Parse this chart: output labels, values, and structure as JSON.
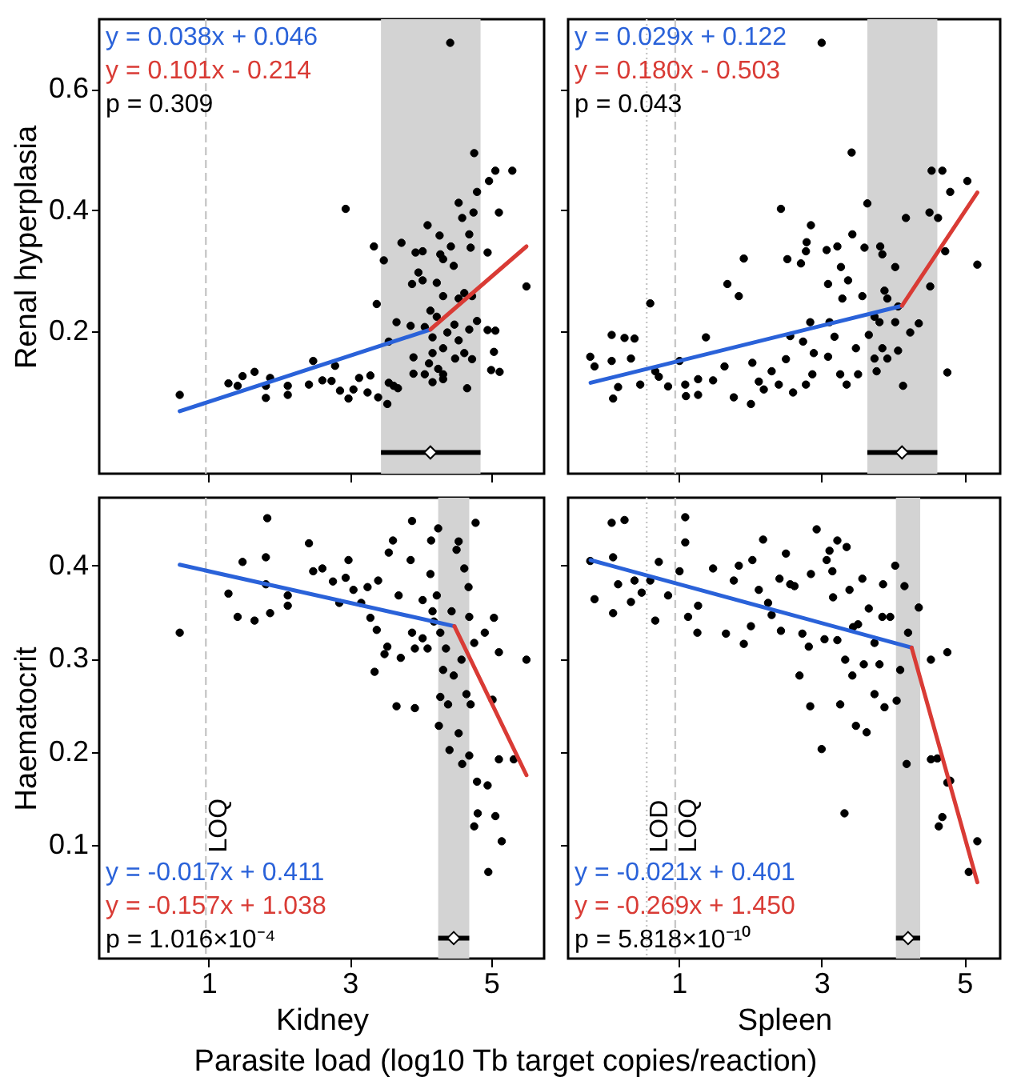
{
  "chart_data": [
    {
      "type": "scatter",
      "ylabel": "Renal hyperplasia",
      "xlim": [
        -0.55,
        5.75
      ],
      "ylim": [
        -0.035,
        0.715
      ],
      "xticks": [
        1,
        3,
        5
      ],
      "yticks": [
        0.2,
        0.4,
        0.6
      ],
      "tick_labels": "y",
      "legend": "top left",
      "marker": "circle",
      "bands": [
        {
          "axis": "x",
          "from": 3.44,
          "to": 4.85,
          "color": "#d3d3d3"
        }
      ],
      "ref_lines": [
        {
          "axis": "x",
          "value": 0.96,
          "color": "#c8c8c8",
          "line_style": "dashed"
        }
      ],
      "annotations": [
        "p = 0.309"
      ],
      "series": [
        {
          "type": "scatter",
          "color": "#000000",
          "x": [
            0.59,
            1.28,
            1.41,
            1.48,
            1.65,
            1.81,
            1.87,
            1.81,
            2.12,
            2.12,
            2.42,
            2.48,
            2.61,
            2.79,
            2.74,
            2.86,
            2.98,
            3.05,
            3.13,
            3.29,
            3.25,
            3.4,
            3.53,
            3.55,
            3.62,
            3.68,
            2.94,
            3.34,
            3.48,
            3.73,
            3.38,
            3.66,
            3.55,
            3.86,
            3.9,
            3.9,
            4.1,
            3.93,
            4.03,
            4.27,
            4.28,
            4.43,
            3.97,
            3.88,
            4.03,
            4.23,
            4.32,
            4.47,
            4.42,
            4.76,
            5.06,
            5.3,
            4.97,
            4.8,
            4.54,
            4.59,
            4.75,
            5.11,
            4.69,
            4.71,
            4.95,
            5.5,
            4.95,
            5.06,
            5.04,
            5.0,
            5.12,
            4.8,
            4.62,
            4.73,
            4.54,
            4.32,
            4.23,
            4.14,
            4.06,
            4.17,
            4.38,
            4.54,
            4.69,
            4.62,
            4.73,
            4.49,
            4.32,
            4.17,
            4.12,
            4.25,
            4.06,
            4.32,
            4.17,
            4.66,
            4.32,
            4.48
          ],
          "values": [
            0.095,
            0.114,
            0.11,
            0.126,
            0.133,
            0.11,
            0.123,
            0.09,
            0.11,
            0.095,
            0.112,
            0.151,
            0.119,
            0.143,
            0.118,
            0.102,
            0.089,
            0.104,
            0.123,
            0.127,
            0.099,
            0.091,
            0.08,
            0.115,
            0.11,
            0.106,
            0.402,
            0.34,
            0.317,
            0.346,
            0.245,
            0.215,
            0.183,
            0.209,
            0.157,
            0.13,
            0.375,
            0.33,
            0.332,
            0.358,
            0.327,
            0.34,
            0.297,
            0.278,
            0.284,
            0.28,
            0.319,
            0.308,
            0.676,
            0.494,
            0.465,
            0.465,
            0.448,
            0.43,
            0.412,
            0.387,
            0.396,
            0.396,
            0.36,
            0.338,
            0.33,
            0.274,
            0.202,
            0.201,
            0.166,
            0.136,
            0.133,
            0.217,
            0.263,
            0.258,
            0.254,
            0.258,
            0.224,
            0.234,
            0.207,
            0.19,
            0.198,
            0.185,
            0.203,
            0.164,
            0.154,
            0.155,
            0.172,
            0.164,
            0.147,
            0.138,
            0.129,
            0.129,
            0.116,
            0.106,
            0.121,
            0.211
          ]
        },
        {
          "type": "line",
          "marker": "none",
          "name": "y = 0.038x + 0.046",
          "color": "#2a62d9",
          "x": [
            0.59,
            4.14
          ],
          "values": [
            0.068,
            0.203
          ]
        },
        {
          "type": "line",
          "marker": "none",
          "name": "y = 0.101x - 0.214",
          "color": "#d93b35",
          "x": [
            4.14,
            5.5
          ],
          "values": [
            0.203,
            0.34
          ]
        },
        {
          "type": "scatter",
          "marker": "diamond",
          "color": "#ffffff",
          "x": [
            4.14
          ],
          "values": [
            0
          ],
          "xerrors": [
            [
              3.44,
              4.85
            ]
          ]
        }
      ]
    },
    {
      "type": "scatter",
      "xlim": [
        -0.55,
        5.5
      ],
      "ylim": [
        -0.035,
        0.715
      ],
      "xticks": [
        1,
        3,
        5
      ],
      "yticks": [
        0.2,
        0.4,
        0.6
      ],
      "tick_labels": false,
      "legend": "top left",
      "marker": "circle",
      "bands": [
        {
          "axis": "x",
          "from": 3.64,
          "to": 4.62,
          "color": "#d3d3d3"
        }
      ],
      "ref_lines": [
        {
          "axis": "x",
          "value": 0.55,
          "color": "#c8c8c8",
          "line_style": "dotted"
        },
        {
          "axis": "x",
          "value": 0.95,
          "color": "#c8c8c8",
          "line_style": "dashed"
        }
      ],
      "annotations": [
        "p = 0.043"
      ],
      "series": [
        {
          "type": "scatter",
          "color": "#000000",
          "x": [
            -0.24,
            -0.18,
            0.06,
            0.06,
            0.08,
            0.15,
            0.24,
            0.38,
            0.33,
            0.46,
            0.6,
            0.67,
            0.72,
            0.85,
            1.01,
            1.09,
            1.1,
            1.27,
            1.27,
            1.38,
            1.48,
            1.64,
            1.68,
            1.77,
            1.84,
            1.91,
            2.03,
            2.01,
            2.12,
            2.19,
            2.3,
            2.4,
            2.43,
            2.52,
            2.5,
            2.56,
            2.6,
            2.71,
            2.78,
            2.79,
            2.85,
            2.84,
            2.74,
            2.89,
            2.87,
            2.78,
            3.0,
            3.07,
            3.09,
            3.11,
            3.09,
            3.18,
            3.22,
            3.27,
            3.29,
            3.26,
            3.35,
            3.37,
            3.42,
            3.43,
            3.48,
            3.51,
            3.57,
            3.6,
            3.64,
            3.66,
            3.74,
            3.82,
            3.85,
            3.88,
            3.92,
            4.03,
            4.07,
            4.03,
            4.07,
            4.14,
            4.18,
            4.24,
            4.36,
            4.52,
            4.54,
            4.69,
            4.8,
            4.51,
            4.63,
            4.73,
            4.76,
            5.04,
            5.18,
            3.81,
            3.74,
            3.92,
            3.77,
            3.85
          ],
          "values": [
            0.158,
            0.142,
            0.151,
            0.194,
            0.089,
            0.108,
            0.189,
            0.188,
            0.155,
            0.112,
            0.246,
            0.134,
            0.125,
            0.109,
            0.151,
            0.112,
            0.093,
            0.121,
            0.095,
            0.19,
            0.119,
            0.142,
            0.278,
            0.091,
            0.258,
            0.32,
            0.148,
            0.08,
            0.117,
            0.104,
            0.134,
            0.112,
            0.402,
            0.319,
            0.154,
            0.192,
            0.099,
            0.312,
            0.332,
            0.347,
            0.375,
            0.215,
            0.183,
            0.164,
            0.129,
            0.112,
            0.676,
            0.334,
            0.278,
            0.215,
            0.158,
            0.191,
            0.34,
            0.306,
            0.254,
            0.129,
            0.112,
            0.284,
            0.495,
            0.36,
            0.172,
            0.129,
            0.258,
            0.338,
            0.411,
            0.194,
            0.155,
            0.34,
            0.327,
            0.267,
            0.155,
            0.306,
            0.241,
            0.215,
            0.168,
            0.11,
            0.387,
            0.198,
            0.213,
            0.274,
            0.465,
            0.465,
            0.43,
            0.396,
            0.387,
            0.332,
            0.132,
            0.448,
            0.31,
            0.215,
            0.224,
            0.254,
            0.134,
            0.172
          ]
        },
        {
          "type": "line",
          "marker": "none",
          "name": "y = 0.029x + 0.122",
          "color": "#2a62d9",
          "x": [
            -0.235,
            4.125
          ],
          "values": [
            0.115,
            0.242
          ]
        },
        {
          "type": "line",
          "marker": "none",
          "name": "y = 0.180x - 0.503",
          "color": "#d93b35",
          "x": [
            4.125,
            5.18
          ],
          "values": [
            0.242,
            0.429
          ]
        },
        {
          "type": "scatter",
          "marker": "diamond",
          "color": "#ffffff",
          "x": [
            4.125
          ],
          "values": [
            0
          ],
          "xerrors": [
            [
              3.64,
              4.62
            ]
          ]
        }
      ]
    },
    {
      "type": "scatter",
      "xlabel": "Kidney",
      "ylabel": "Haematocrit",
      "xlim": [
        -0.55,
        5.75
      ],
      "ylim": [
        -0.022,
        0.473
      ],
      "xticks": [
        1,
        3,
        5
      ],
      "yticks": [
        0.1,
        0.2,
        0.3,
        0.4
      ],
      "legend": "bottom left",
      "marker": "circle",
      "bands": [
        {
          "axis": "x",
          "from": 4.25,
          "to": 4.69,
          "color": "#d3d3d3"
        }
      ],
      "ref_lines": [
        {
          "axis": "x",
          "value": 0.96,
          "label": "LOQ",
          "color": "#c8c8c8",
          "line_style": "dashed"
        }
      ],
      "annotations": [
        "p = 1.016×10⁻⁴"
      ],
      "series": [
        {
          "type": "scatter",
          "color": "#000000",
          "x": [
            0.59,
            1.28,
            1.41,
            1.48,
            1.65,
            1.81,
            1.81,
            1.83,
            1.87,
            2.12,
            2.12,
            2.42,
            2.48,
            2.61,
            2.76,
            2.85,
            2.94,
            2.98,
            3.05,
            3.16,
            3.25,
            3.29,
            3.35,
            3.38,
            3.4,
            3.49,
            3.53,
            3.55,
            3.61,
            3.66,
            3.72,
            3.69,
            3.86,
            3.88,
            3.88,
            3.92,
            3.92,
            4.03,
            4.03,
            4.15,
            4.14,
            4.25,
            4.26,
            4.28,
            4.32,
            4.17,
            4.23,
            4.28,
            4.36,
            4.39,
            4.41,
            4.47,
            4.51,
            4.54,
            4.54,
            4.59,
            4.62,
            4.68,
            4.69,
            4.71,
            4.65,
            4.58,
            4.78,
            4.76,
            4.8,
            4.81,
            4.76,
            4.95,
            4.96,
            4.91,
            5.02,
            5.04,
            5.06,
            5.11,
            5.11,
            5.15,
            5.32,
            5.5,
            4.1,
            4.19,
            4.69,
            4.44
          ],
          "values": [
            0.328,
            0.37,
            0.345,
            0.404,
            0.341,
            0.409,
            0.38,
            0.451,
            0.349,
            0.357,
            0.368,
            0.424,
            0.394,
            0.397,
            0.383,
            0.36,
            0.387,
            0.406,
            0.374,
            0.36,
            0.377,
            0.344,
            0.286,
            0.331,
            0.384,
            0.305,
            0.313,
            0.414,
            0.427,
            0.249,
            0.301,
            0.368,
            0.406,
            0.448,
            0.328,
            0.247,
            0.311,
            0.363,
            0.322,
            0.427,
            0.391,
            0.44,
            0.228,
            0.259,
            0.288,
            0.351,
            0.368,
            0.328,
            0.311,
            0.251,
            0.202,
            0.282,
            0.417,
            0.426,
            0.22,
            0.187,
            0.397,
            0.377,
            0.196,
            0.251,
            0.262,
            0.299,
            0.446,
            0.317,
            0.168,
            0.134,
            0.12,
            0.164,
            0.071,
            0.328,
            0.256,
            0.344,
            0.131,
            0.307,
            0.192,
            0.104,
            0.192,
            0.299,
            0.311,
            0.34,
            0.345,
            0.351
          ]
        },
        {
          "type": "line",
          "marker": "none",
          "name": "y = -0.017x + 0.411",
          "color": "#2a62d9",
          "x": [
            0.59,
            4.48
          ],
          "values": [
            0.401,
            0.335
          ]
        },
        {
          "type": "line",
          "marker": "none",
          "name": "y = -0.157x + 1.038",
          "color": "#d93b35",
          "x": [
            4.48,
            5.5
          ],
          "values": [
            0.335,
            0.175
          ]
        },
        {
          "type": "scatter",
          "marker": "diamond",
          "color": "#ffffff",
          "x": [
            4.47
          ],
          "values": [
            0
          ],
          "xerrors": [
            [
              4.25,
              4.69
            ]
          ]
        }
      ]
    },
    {
      "type": "scatter",
      "xlabel": "Spleen",
      "xlim": [
        -0.55,
        5.5
      ],
      "ylim": [
        -0.022,
        0.473
      ],
      "xticks": [
        1,
        3,
        5
      ],
      "yticks": [
        0.1,
        0.2,
        0.3,
        0.4
      ],
      "tick_labels": "x",
      "legend": "bottom left",
      "marker": "circle",
      "bands": [
        {
          "axis": "x",
          "from": 4.04,
          "to": 4.38,
          "color": "#d3d3d3"
        }
      ],
      "ref_lines": [
        {
          "axis": "x",
          "value": 0.55,
          "label": "LOD",
          "color": "#c8c8c8",
          "line_style": "dotted"
        },
        {
          "axis": "x",
          "value": 0.95,
          "label": "LOQ",
          "color": "#c8c8c8",
          "line_style": "dashed"
        }
      ],
      "annotations": [
        "p = 5.818×10⁻¹⁰"
      ],
      "series": [
        {
          "type": "scatter",
          "color": "#000000",
          "x": [
            -0.24,
            -0.18,
            0.06,
            0.08,
            0.08,
            0.15,
            0.24,
            0.33,
            0.38,
            0.48,
            0.6,
            0.67,
            0.72,
            0.85,
            1.01,
            1.09,
            1.09,
            1.13,
            1.26,
            1.27,
            1.48,
            1.66,
            1.77,
            1.84,
            1.91,
            2.01,
            2.03,
            2.12,
            2.18,
            2.25,
            2.3,
            2.41,
            2.43,
            2.5,
            2.56,
            2.62,
            2.69,
            2.73,
            2.82,
            2.84,
            2.85,
            2.93,
            3.0,
            3.04,
            3.07,
            3.11,
            3.15,
            3.16,
            3.22,
            3.22,
            3.26,
            3.32,
            3.33,
            3.35,
            3.39,
            3.43,
            3.48,
            3.51,
            3.57,
            3.59,
            3.63,
            3.66,
            3.74,
            3.81,
            3.86,
            3.88,
            3.96,
            4.03,
            4.05,
            4.1,
            4.16,
            4.19,
            4.21,
            4.36,
            4.53,
            4.76,
            4.53,
            4.62,
            4.76,
            4.8,
            4.69,
            4.64,
            5.18,
            5.06,
            3.74,
            3.44,
            3.85
          ],
          "values": [
            0.405,
            0.364,
            0.446,
            0.409,
            0.349,
            0.38,
            0.449,
            0.361,
            0.384,
            0.371,
            0.384,
            0.341,
            0.404,
            0.368,
            0.394,
            0.452,
            0.425,
            0.345,
            0.328,
            0.357,
            0.397,
            0.327,
            0.384,
            0.4,
            0.316,
            0.335,
            0.406,
            0.374,
            0.428,
            0.36,
            0.347,
            0.386,
            0.33,
            0.413,
            0.38,
            0.378,
            0.282,
            0.327,
            0.313,
            0.249,
            0.391,
            0.439,
            0.203,
            0.321,
            0.406,
            0.416,
            0.394,
            0.366,
            0.427,
            0.32,
            0.251,
            0.134,
            0.299,
            0.42,
            0.374,
            0.282,
            0.228,
            0.337,
            0.386,
            0.294,
            0.221,
            0.354,
            0.262,
            0.294,
            0.38,
            0.248,
            0.345,
            0.4,
            0.255,
            0.288,
            0.378,
            0.187,
            0.328,
            0.355,
            0.299,
            0.307,
            0.192,
            0.193,
            0.167,
            0.169,
            0.13,
            0.12,
            0.104,
            0.071,
            0.317,
            0.334,
            0.345
          ]
        },
        {
          "type": "line",
          "marker": "none",
          "name": "y = -0.021x + 0.401",
          "color": "#2a62d9",
          "x": [
            -0.235,
            4.26
          ],
          "values": [
            0.406,
            0.312
          ]
        },
        {
          "type": "line",
          "marker": "none",
          "name": "y = -0.269x + 1.450",
          "color": "#d93b35",
          "x": [
            4.26,
            5.18
          ],
          "values": [
            0.312,
            0.06
          ]
        },
        {
          "type": "scatter",
          "marker": "diamond",
          "color": "#ffffff",
          "x": [
            4.21
          ],
          "values": [
            0
          ],
          "xerrors": [
            [
              4.04,
              4.38
            ]
          ]
        }
      ]
    },
    {
      "type": "other",
      "title": "Parasite load (log10 Tb target copies/reaction)"
    }
  ]
}
